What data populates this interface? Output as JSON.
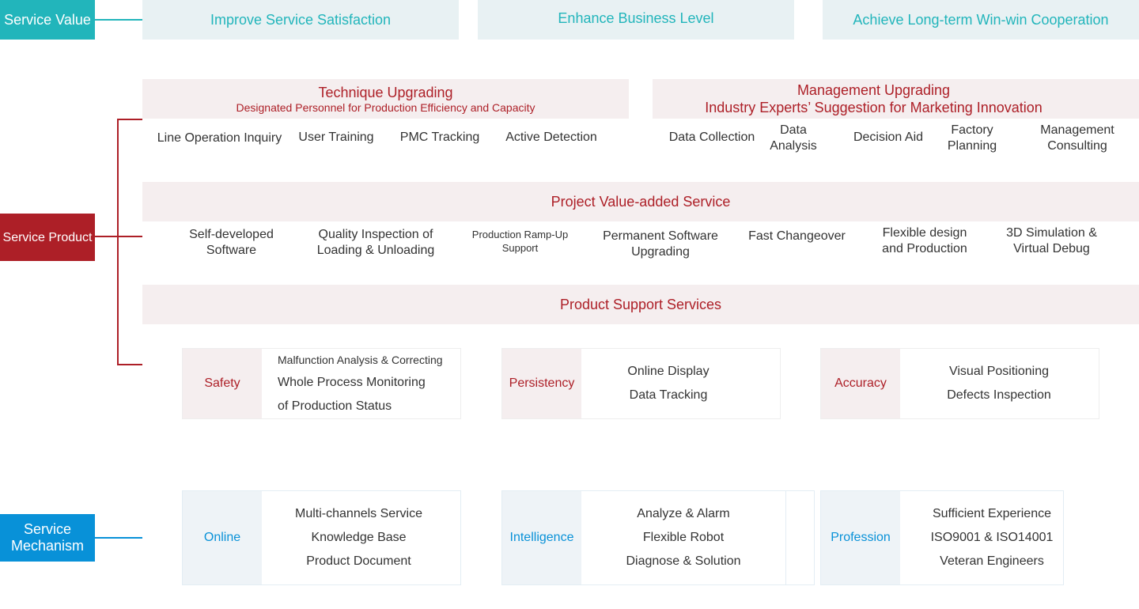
{
  "colors": {
    "value": "#22b5bb",
    "product": "#ad1f27",
    "mechanism": "#0891d8"
  },
  "service_value": {
    "label": "Service Value",
    "items": [
      "Improve Service Satisfaction",
      "Enhance Business Level",
      "Achieve Long-term Win-win Cooperation"
    ]
  },
  "service_product": {
    "label": "Service Product",
    "technique": {
      "title": "Technique Upgrading",
      "subtitle": "Designated Personnel for Production Efficiency and Capacity",
      "items": [
        "Line Operation Inquiry",
        "User Training",
        "PMC Tracking",
        "Active Detection"
      ]
    },
    "management": {
      "title": "Management Upgrading",
      "subtitle": "Industry Experts’ Suggestion for Marketing Innovation",
      "items": [
        "Data Collection",
        "Data Analysis",
        "Decision Aid",
        "Factory Planning",
        "Management Consulting"
      ]
    },
    "project": {
      "title": "Project Value-added Service",
      "items": [
        "Self-developed Software",
        "Quality Inspection of Loading & Unloading",
        "Production Ramp-Up Support",
        "Permanent Software Upgrading",
        "Fast Changeover",
        "Flexible design and Production",
        "3D Simulation & Virtual Debug"
      ]
    },
    "support": {
      "title": "Product Support Services",
      "groups": [
        {
          "key": "Safety",
          "lines": [
            "Malfunction Analysis & Correcting",
            "Whole Process Monitoring",
            "of Production Status"
          ]
        },
        {
          "key": "Persistency",
          "lines": [
            "Online Display",
            "Data Tracking"
          ]
        },
        {
          "key": "Accuracy",
          "lines": [
            "Visual Positioning",
            "Defects Inspection"
          ]
        }
      ]
    }
  },
  "service_mechanism": {
    "label": "Service Mechanism",
    "groups": [
      {
        "key": "Online",
        "lines": [
          "Multi-channels Service",
          "Knowledge Base",
          "Product Document"
        ]
      },
      {
        "key": "Intelligence",
        "lines": [
          "Analyze & Alarm",
          "Flexible Robot",
          "Diagnose & Solution"
        ]
      },
      {
        "key": "Profession",
        "lines": [
          "Sufficient Experience",
          "ISO9001 & ISO14001",
          "Veteran Engineers"
        ]
      }
    ]
  }
}
